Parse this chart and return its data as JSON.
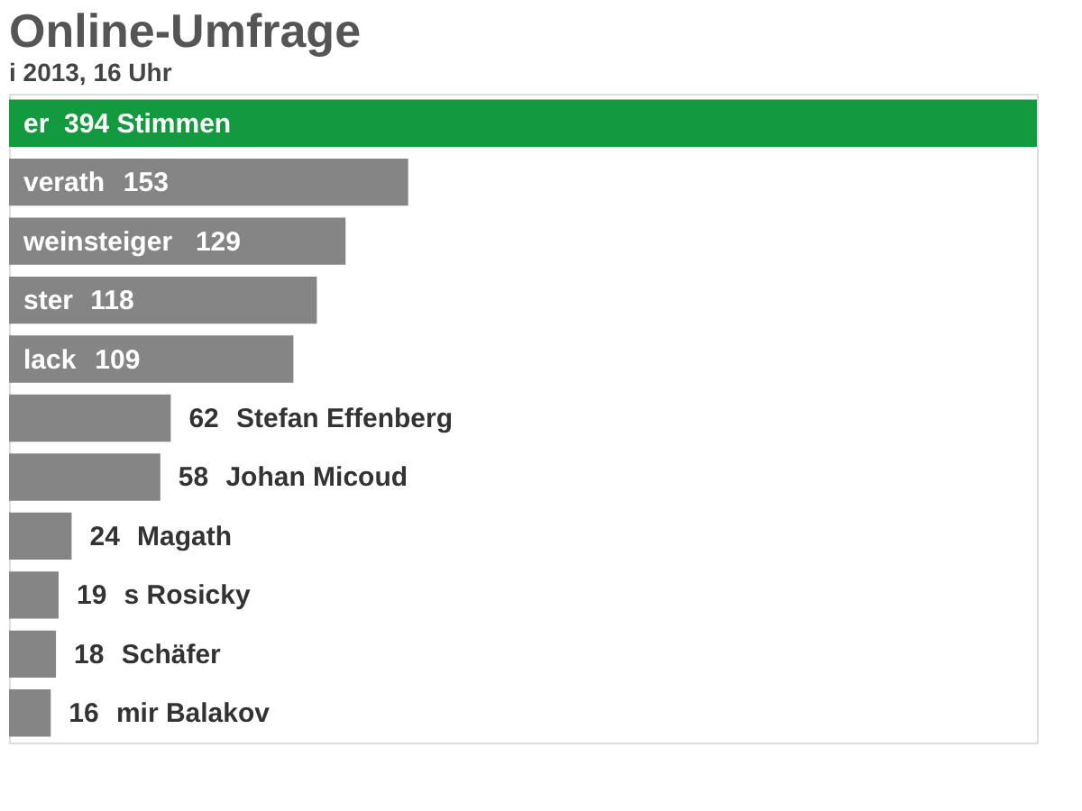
{
  "chart_data": {
    "type": "bar",
    "orientation": "horizontal",
    "title": "Online-Umfrage",
    "subtitle": "i 2013, 16 Uhr",
    "categories": [
      "er",
      "verath",
      "weinsteiger",
      "ster",
      "lack",
      "Stefan Effenberg",
      "Johan Micoud",
      "Magath",
      "s Rosicky",
      "Schäfer",
      "mir Balakov"
    ],
    "values": [
      394,
      153,
      129,
      118,
      109,
      62,
      58,
      24,
      19,
      18,
      16
    ],
    "value_labels": [
      "394 Stimmen",
      "153",
      "129",
      "118",
      "109",
      "62",
      "58",
      "24",
      "19",
      "18",
      "16"
    ],
    "colors": [
      "#139a3e",
      "#858585",
      "#858585",
      "#858585",
      "#858585",
      "#858585",
      "#858585",
      "#858585",
      "#858585",
      "#858585",
      "#858585"
    ]
  }
}
